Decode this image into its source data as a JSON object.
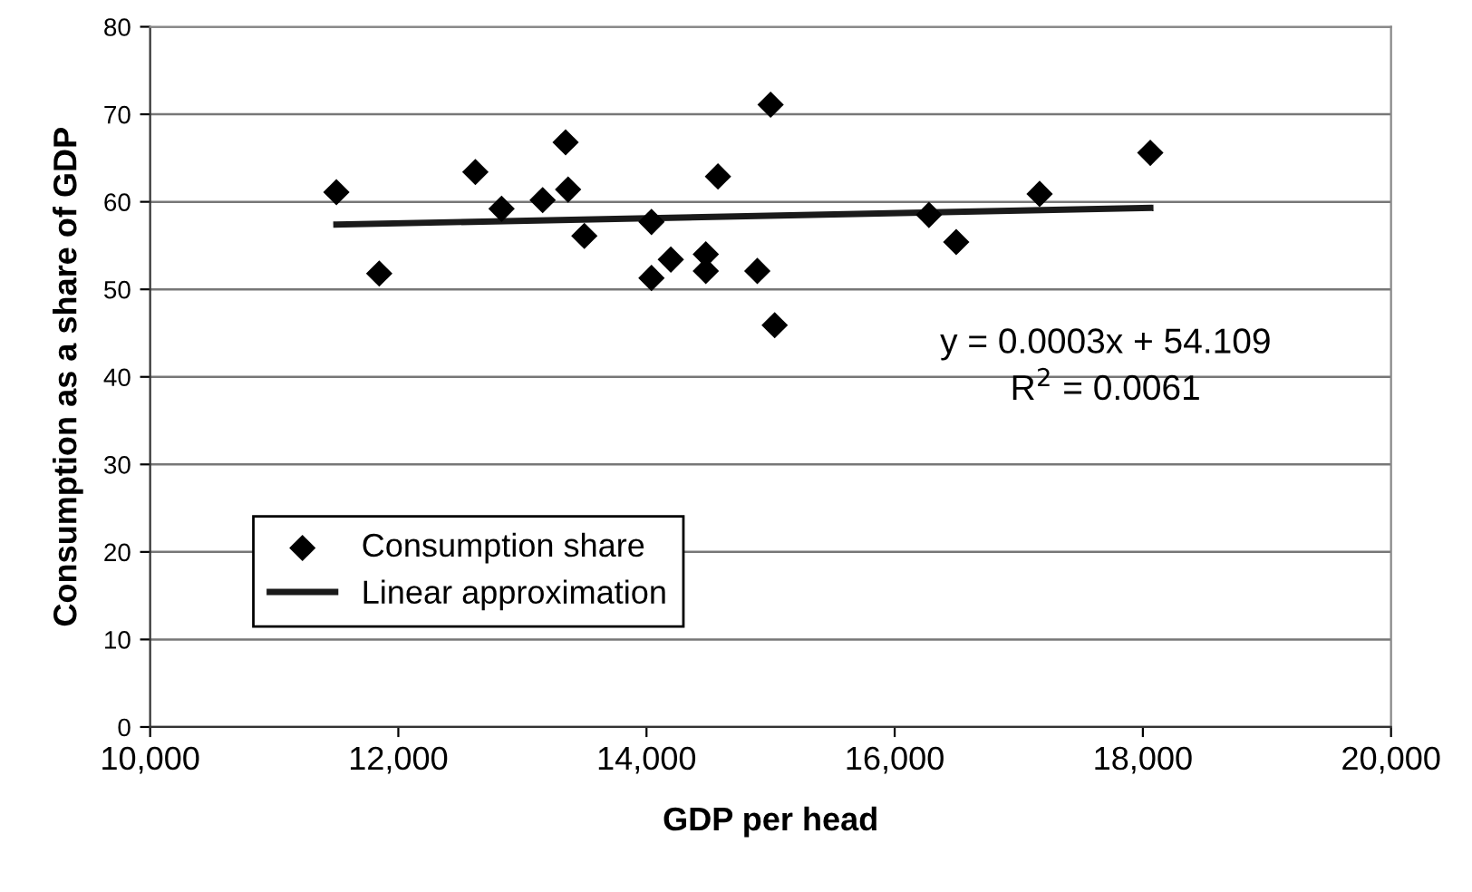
{
  "chart_data": {
    "type": "scatter",
    "xlabel": "GDP per head",
    "ylabel": "Consumption as a share of GDP",
    "series": [
      {
        "name": "Consumption share",
        "color": "#000000",
        "marker": "diamond",
        "x": [
          11501,
          11846,
          12621,
          12832,
          13163,
          13348,
          13368,
          13499,
          14040,
          14040,
          14196,
          14478,
          14478,
          14576,
          14893,
          15033,
          15000,
          16276,
          16496,
          17168,
          18060
        ],
        "values": [
          61.1,
          51.8,
          63.4,
          59.2,
          60.2,
          66.8,
          61.4,
          56.1,
          57.7,
          51.3,
          53.4,
          54.0,
          52.1,
          62.9,
          52.1,
          45.9,
          71.1,
          58.5,
          55.4,
          60.9,
          65.6
        ]
      },
      {
        "name": "Linear approximation",
        "type": "line",
        "color": "#1a1a1a",
        "marker": "none",
        "line_style": "solid",
        "x": [
          11501,
          18060
        ],
        "values": [
          57.4,
          59.3
        ]
      }
    ],
    "annotations": [
      "y = 0.0003x + 54.109",
      "R$^{2}$ = 0.0061"
    ],
    "xlim": [
      10000,
      20000
    ],
    "xticks": [
      {
        "value": 10000,
        "label": "10,000"
      },
      {
        "value": 12000,
        "label": "12,000"
      },
      {
        "value": 14000,
        "label": "14,000"
      },
      {
        "value": 16000,
        "label": "16,000"
      },
      {
        "value": 18000,
        "label": "18,000"
      },
      {
        "value": 20000,
        "label": "20,000"
      }
    ],
    "ylim": [
      0,
      80
    ],
    "yticks": [
      0,
      10,
      20,
      30,
      40,
      50,
      60,
      70,
      80
    ],
    "grid": "y",
    "legend": "lower left"
  }
}
